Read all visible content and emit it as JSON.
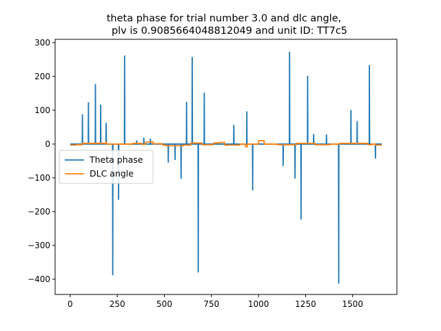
{
  "chart_data": {
    "type": "line",
    "title_lines": [
      "theta phase for trial number 3.0 and dlc angle,",
      "plv is 0.9085664048812049 and unit ID: TT7c5"
    ],
    "xlabel": "",
    "ylabel": "",
    "xlim": [
      -80,
      1735
    ],
    "ylim": [
      -445,
      310
    ],
    "x_ticks": [
      0,
      250,
      500,
      750,
      1000,
      1250,
      1500
    ],
    "y_ticks": [
      -400,
      -300,
      -200,
      -100,
      0,
      100,
      200,
      300
    ],
    "grid": false,
    "legend_position": "center-left",
    "series": [
      {
        "name": "Theta phase",
        "color": "#1f77b4",
        "points": [
          [
            0,
            0
          ],
          [
            64,
            0
          ],
          [
            65,
            88
          ],
          [
            66,
            0
          ],
          [
            96,
            0
          ],
          [
            97,
            124
          ],
          [
            98,
            0
          ],
          [
            133,
            0
          ],
          [
            134,
            178
          ],
          [
            135,
            0
          ],
          [
            161,
            0
          ],
          [
            162,
            117
          ],
          [
            163,
            0
          ],
          [
            190,
            0
          ],
          [
            191,
            63
          ],
          [
            192,
            0
          ],
          [
            225,
            0
          ],
          [
            226,
            -388
          ],
          [
            227,
            0
          ],
          [
            256,
            0
          ],
          [
            257,
            -165
          ],
          [
            258,
            0
          ],
          [
            288,
            0
          ],
          [
            289,
            262
          ],
          [
            290,
            0
          ],
          [
            352,
            0
          ],
          [
            353,
            11
          ],
          [
            354,
            0
          ],
          [
            390,
            0
          ],
          [
            391,
            19
          ],
          [
            392,
            0
          ],
          [
            425,
            0
          ],
          [
            426,
            16
          ],
          [
            427,
            0
          ],
          [
            520,
            0
          ],
          [
            521,
            -55
          ],
          [
            522,
            0
          ],
          [
            556,
            0
          ],
          [
            557,
            -47
          ],
          [
            558,
            0
          ],
          [
            588,
            0
          ],
          [
            589,
            -103
          ],
          [
            590,
            0
          ],
          [
            617,
            0
          ],
          [
            618,
            125
          ],
          [
            619,
            0
          ],
          [
            647,
            0
          ],
          [
            648,
            258
          ],
          [
            649,
            0
          ],
          [
            679,
            0
          ],
          [
            680,
            -380
          ],
          [
            681,
            0
          ],
          [
            711,
            0
          ],
          [
            712,
            152
          ],
          [
            713,
            0
          ],
          [
            868,
            0
          ],
          [
            869,
            57
          ],
          [
            870,
            0
          ],
          [
            937,
            0
          ],
          [
            938,
            97
          ],
          [
            939,
            0
          ],
          [
            968,
            0
          ],
          [
            969,
            -137
          ],
          [
            970,
            0
          ],
          [
            1130,
            0
          ],
          [
            1131,
            -65
          ],
          [
            1132,
            0
          ],
          [
            1164,
            0
          ],
          [
            1165,
            273
          ],
          [
            1166,
            0
          ],
          [
            1193,
            0
          ],
          [
            1194,
            -102
          ],
          [
            1195,
            0
          ],
          [
            1225,
            0
          ],
          [
            1226,
            -223
          ],
          [
            1227,
            0
          ],
          [
            1260,
            0
          ],
          [
            1261,
            202
          ],
          [
            1262,
            0
          ],
          [
            1292,
            0
          ],
          [
            1293,
            30
          ],
          [
            1294,
            0
          ],
          [
            1360,
            0
          ],
          [
            1361,
            28
          ],
          [
            1362,
            0
          ],
          [
            1425,
            0
          ],
          [
            1426,
            -413
          ],
          [
            1427,
            0
          ],
          [
            1490,
            0
          ],
          [
            1491,
            101
          ],
          [
            1492,
            0
          ],
          [
            1523,
            0
          ],
          [
            1524,
            68
          ],
          [
            1525,
            0
          ],
          [
            1588,
            0
          ],
          [
            1589,
            234
          ],
          [
            1590,
            0
          ],
          [
            1620,
            0
          ],
          [
            1621,
            -43
          ],
          [
            1622,
            0
          ],
          [
            1655,
            0
          ]
        ]
      },
      {
        "name": "DLC angle",
        "color": "#ff7f0e",
        "points": [
          [
            0,
            -3
          ],
          [
            30,
            -3
          ],
          [
            31,
            -2
          ],
          [
            64,
            -2
          ],
          [
            65,
            2
          ],
          [
            190,
            2
          ],
          [
            191,
            5
          ],
          [
            193,
            5
          ],
          [
            194,
            0
          ],
          [
            330,
            0
          ],
          [
            331,
            2
          ],
          [
            380,
            2
          ],
          [
            381,
            -1
          ],
          [
            400,
            -1
          ],
          [
            401,
            6
          ],
          [
            440,
            6
          ],
          [
            441,
            1
          ],
          [
            490,
            1
          ],
          [
            491,
            -3
          ],
          [
            510,
            -3
          ],
          [
            511,
            -5
          ],
          [
            600,
            -5
          ],
          [
            601,
            -3
          ],
          [
            640,
            -3
          ],
          [
            641,
            3
          ],
          [
            700,
            3
          ],
          [
            701,
            -2
          ],
          [
            760,
            -2
          ],
          [
            761,
            3
          ],
          [
            790,
            3
          ],
          [
            791,
            5
          ],
          [
            820,
            5
          ],
          [
            821,
            -3
          ],
          [
            900,
            -3
          ],
          [
            901,
            0
          ],
          [
            930,
            0
          ],
          [
            931,
            -8
          ],
          [
            940,
            -8
          ],
          [
            941,
            0
          ],
          [
            1000,
            0
          ],
          [
            1001,
            10
          ],
          [
            1030,
            10
          ],
          [
            1031,
            0
          ],
          [
            1100,
            0
          ],
          [
            1101,
            -2
          ],
          [
            1200,
            -2
          ],
          [
            1201,
            2
          ],
          [
            1300,
            2
          ],
          [
            1301,
            -2
          ],
          [
            1380,
            -2
          ],
          [
            1381,
            0
          ],
          [
            1430,
            0
          ],
          [
            1431,
            2
          ],
          [
            1580,
            2
          ],
          [
            1581,
            -2
          ],
          [
            1600,
            -2
          ],
          [
            1601,
            0
          ],
          [
            1620,
            0
          ],
          [
            1621,
            -3
          ],
          [
            1655,
            -3
          ]
        ]
      }
    ]
  }
}
